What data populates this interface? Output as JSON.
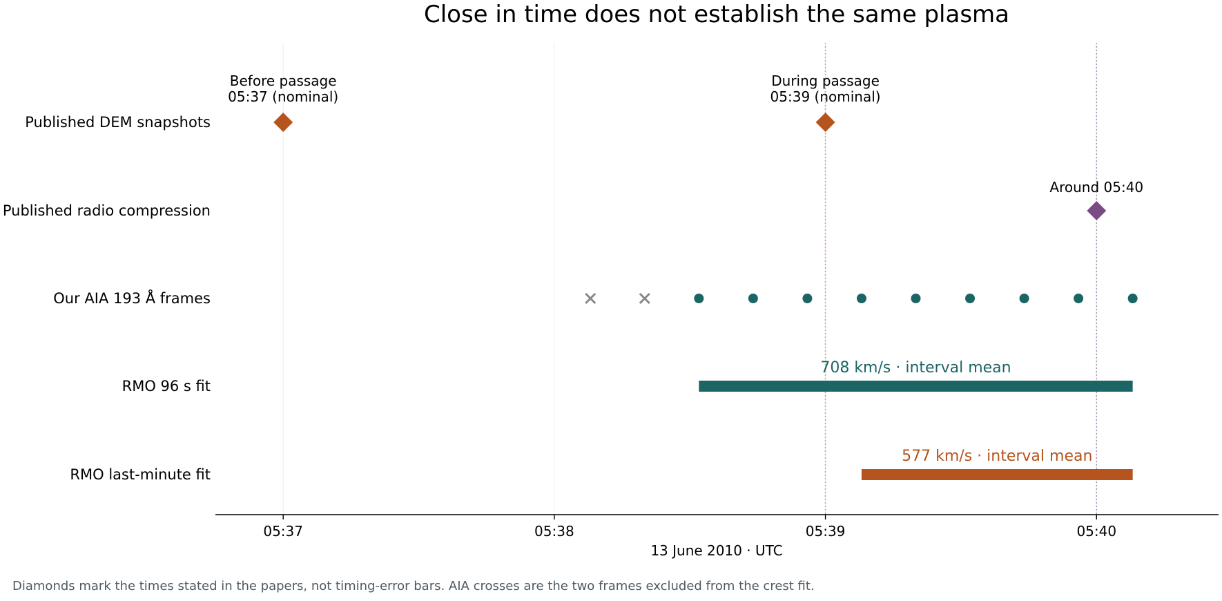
{
  "chart_data": {
    "type": "timeline",
    "title": "Close in time does not establish the same plasma",
    "xlabel": "13 June 2010 · UTC",
    "x_unit": "time (HH:MM:SS UTC)",
    "xlim": [
      "05:36:45",
      "05:40:27"
    ],
    "x_ticks": [
      "05:37",
      "05:38",
      "05:39",
      "05:40"
    ],
    "rows": [
      "Published DEM snapshots",
      "Published radio compression",
      "Our AIA 193 Å frames",
      "RMO 96 s fit",
      "RMO last-minute fit"
    ],
    "colors": {
      "orange": "#b5541c",
      "purple": "#7b4b84",
      "teal": "#1b6565",
      "gray": "#888888",
      "orange_line": "#d4a083",
      "purple_line": "#a895b5",
      "grid": "#ececec"
    },
    "dem_snapshots": [
      {
        "time": "05:37:00",
        "label_line1": "Before passage",
        "label_line2": "05:37 (nominal)"
      },
      {
        "time": "05:39:00",
        "label_line1": "During passage",
        "label_line2": "05:39 (nominal)"
      }
    ],
    "radio_compression": {
      "time": "05:40:00",
      "label": "Around 05:40"
    },
    "reference_lines": [
      {
        "time": "05:39:00",
        "color": "orange_line"
      },
      {
        "time": "05:40:00",
        "color": "purple_line"
      }
    ],
    "aia_frames": {
      "excluded": [
        "05:38:08",
        "05:38:20"
      ],
      "included": [
        "05:38:32",
        "05:38:44",
        "05:38:56",
        "05:39:08",
        "05:39:20",
        "05:39:32",
        "05:39:44",
        "05:39:56",
        "05:40:08"
      ]
    },
    "fits": [
      {
        "row": "RMO 96 s fit",
        "start": "05:38:32",
        "end": "05:40:08",
        "label": "708 km/s · interval mean",
        "color": "teal"
      },
      {
        "row": "RMO last-minute fit",
        "start": "05:39:08",
        "end": "05:40:08",
        "label": "577 km/s · interval mean",
        "color": "orange"
      }
    ]
  },
  "footnote": "Diamonds mark the times stated in the papers, not timing-error bars. AIA crosses are the two frames excluded from the crest fit."
}
